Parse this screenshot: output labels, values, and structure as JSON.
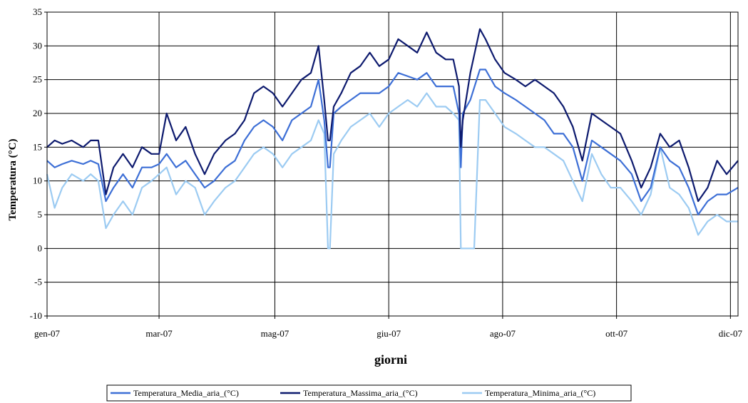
{
  "chart_data": {
    "type": "line",
    "title": "",
    "xlabel": "giorni",
    "ylabel": "Temperatura (°C)",
    "ylim": [
      -10,
      35
    ],
    "yticks": [
      -10,
      -5,
      0,
      5,
      10,
      15,
      20,
      25,
      30,
      35
    ],
    "xlim": [
      "2007-01-01",
      "2007-12-31"
    ],
    "xticks": [
      {
        "date": "2007-01-01",
        "label": "gen-07"
      },
      {
        "date": "2007-03-01",
        "label": "mar-07"
      },
      {
        "date": "2007-05-01",
        "label": "mag-07"
      },
      {
        "date": "2007-06-30",
        "label": "giu-07"
      },
      {
        "date": "2007-08-29",
        "label": "ago-07"
      },
      {
        "date": "2007-10-28",
        "label": "ott-07"
      },
      {
        "date": "2007-12-27",
        "label": "dic-07"
      }
    ],
    "grid": true,
    "legend_position": "bottom",
    "series": [
      {
        "name": "Temperatura_Media_aria_(°C)",
        "color": "#3d6fd6",
        "points": [
          [
            "2007-01-01",
            13
          ],
          [
            "2007-01-05",
            12
          ],
          [
            "2007-01-09",
            12.5
          ],
          [
            "2007-01-14",
            13
          ],
          [
            "2007-01-20",
            12.5
          ],
          [
            "2007-01-24",
            13
          ],
          [
            "2007-01-28",
            12.5
          ],
          [
            "2007-02-01",
            7
          ],
          [
            "2007-02-05",
            9
          ],
          [
            "2007-02-10",
            11
          ],
          [
            "2007-02-15",
            9
          ],
          [
            "2007-02-20",
            12
          ],
          [
            "2007-02-25",
            12
          ],
          [
            "2007-03-01",
            12.5
          ],
          [
            "2007-03-05",
            14
          ],
          [
            "2007-03-10",
            12
          ],
          [
            "2007-03-15",
            13
          ],
          [
            "2007-03-20",
            11
          ],
          [
            "2007-03-25",
            9
          ],
          [
            "2007-03-30",
            10
          ],
          [
            "2007-04-05",
            12
          ],
          [
            "2007-04-10",
            13
          ],
          [
            "2007-04-15",
            16
          ],
          [
            "2007-04-20",
            18
          ],
          [
            "2007-04-25",
            19
          ],
          [
            "2007-04-30",
            18
          ],
          [
            "2007-05-05",
            16
          ],
          [
            "2007-05-10",
            19
          ],
          [
            "2007-05-15",
            20
          ],
          [
            "2007-05-20",
            21
          ],
          [
            "2007-05-24",
            25
          ],
          [
            "2007-05-27",
            19
          ],
          [
            "2007-05-29",
            12
          ],
          [
            "2007-05-30",
            12
          ],
          [
            "2007-06-01",
            20
          ],
          [
            "2007-06-05",
            21
          ],
          [
            "2007-06-10",
            22
          ],
          [
            "2007-06-15",
            23
          ],
          [
            "2007-06-20",
            23
          ],
          [
            "2007-06-25",
            23
          ],
          [
            "2007-06-30",
            24
          ],
          [
            "2007-07-05",
            26
          ],
          [
            "2007-07-10",
            25.5
          ],
          [
            "2007-07-15",
            25
          ],
          [
            "2007-07-20",
            26
          ],
          [
            "2007-07-25",
            24
          ],
          [
            "2007-07-30",
            24
          ],
          [
            "2007-08-03",
            24
          ],
          [
            "2007-08-06",
            20
          ],
          [
            "2007-08-07",
            12
          ],
          [
            "2007-08-08",
            20
          ],
          [
            "2007-08-12",
            22
          ],
          [
            "2007-08-17",
            26.5
          ],
          [
            "2007-08-20",
            26.5
          ],
          [
            "2007-08-25",
            24
          ],
          [
            "2007-08-30",
            23
          ],
          [
            "2007-09-05",
            22
          ],
          [
            "2007-09-10",
            21
          ],
          [
            "2007-09-15",
            20
          ],
          [
            "2007-09-20",
            19
          ],
          [
            "2007-09-25",
            17
          ],
          [
            "2007-09-30",
            17
          ],
          [
            "2007-10-05",
            15
          ],
          [
            "2007-10-10",
            10
          ],
          [
            "2007-10-15",
            16
          ],
          [
            "2007-10-20",
            15
          ],
          [
            "2007-10-25",
            14
          ],
          [
            "2007-10-30",
            13
          ],
          [
            "2007-11-05",
            11
          ],
          [
            "2007-11-10",
            7
          ],
          [
            "2007-11-15",
            9
          ],
          [
            "2007-11-20",
            15
          ],
          [
            "2007-11-25",
            13
          ],
          [
            "2007-11-30",
            12
          ],
          [
            "2007-12-05",
            9
          ],
          [
            "2007-12-10",
            5
          ],
          [
            "2007-12-15",
            7
          ],
          [
            "2007-12-20",
            8
          ],
          [
            "2007-12-25",
            8
          ],
          [
            "2007-12-31",
            9
          ]
        ]
      },
      {
        "name": "Temperatura_Massima_aria_(°C)",
        "color": "#0d1a6e",
        "points": [
          [
            "2007-01-01",
            15
          ],
          [
            "2007-01-05",
            16
          ],
          [
            "2007-01-09",
            15.5
          ],
          [
            "2007-01-14",
            16
          ],
          [
            "2007-01-20",
            15
          ],
          [
            "2007-01-24",
            16
          ],
          [
            "2007-01-28",
            16
          ],
          [
            "2007-02-01",
            8
          ],
          [
            "2007-02-05",
            12
          ],
          [
            "2007-02-10",
            14
          ],
          [
            "2007-02-15",
            12
          ],
          [
            "2007-02-20",
            15
          ],
          [
            "2007-02-25",
            14
          ],
          [
            "2007-03-01",
            14
          ],
          [
            "2007-03-05",
            20
          ],
          [
            "2007-03-10",
            16
          ],
          [
            "2007-03-15",
            18
          ],
          [
            "2007-03-20",
            14
          ],
          [
            "2007-03-25",
            11
          ],
          [
            "2007-03-30",
            14
          ],
          [
            "2007-04-05",
            16
          ],
          [
            "2007-04-10",
            17
          ],
          [
            "2007-04-15",
            19
          ],
          [
            "2007-04-20",
            23
          ],
          [
            "2007-04-25",
            24
          ],
          [
            "2007-04-30",
            23
          ],
          [
            "2007-05-05",
            21
          ],
          [
            "2007-05-10",
            23
          ],
          [
            "2007-05-15",
            25
          ],
          [
            "2007-05-20",
            26
          ],
          [
            "2007-05-24",
            30
          ],
          [
            "2007-05-27",
            22
          ],
          [
            "2007-05-29",
            16
          ],
          [
            "2007-05-30",
            16
          ],
          [
            "2007-06-01",
            21
          ],
          [
            "2007-06-05",
            23
          ],
          [
            "2007-06-10",
            26
          ],
          [
            "2007-06-15",
            27
          ],
          [
            "2007-06-20",
            29
          ],
          [
            "2007-06-25",
            27
          ],
          [
            "2007-06-30",
            28
          ],
          [
            "2007-07-05",
            31
          ],
          [
            "2007-07-10",
            30
          ],
          [
            "2007-07-15",
            29
          ],
          [
            "2007-07-20",
            32
          ],
          [
            "2007-07-25",
            29
          ],
          [
            "2007-07-30",
            28
          ],
          [
            "2007-08-03",
            28
          ],
          [
            "2007-08-06",
            24
          ],
          [
            "2007-08-07",
            15
          ],
          [
            "2007-08-08",
            19
          ],
          [
            "2007-08-12",
            26
          ],
          [
            "2007-08-17",
            32.5
          ],
          [
            "2007-08-20",
            31
          ],
          [
            "2007-08-25",
            28
          ],
          [
            "2007-08-30",
            26
          ],
          [
            "2007-09-05",
            25
          ],
          [
            "2007-09-10",
            24
          ],
          [
            "2007-09-15",
            25
          ],
          [
            "2007-09-20",
            24
          ],
          [
            "2007-09-25",
            23
          ],
          [
            "2007-09-30",
            21
          ],
          [
            "2007-10-05",
            18
          ],
          [
            "2007-10-10",
            13
          ],
          [
            "2007-10-15",
            20
          ],
          [
            "2007-10-20",
            19
          ],
          [
            "2007-10-25",
            18
          ],
          [
            "2007-10-30",
            17
          ],
          [
            "2007-11-05",
            13
          ],
          [
            "2007-11-10",
            9
          ],
          [
            "2007-11-15",
            12
          ],
          [
            "2007-11-20",
            17
          ],
          [
            "2007-11-25",
            15
          ],
          [
            "2007-11-30",
            16
          ],
          [
            "2007-12-05",
            12
          ],
          [
            "2007-12-10",
            7
          ],
          [
            "2007-12-15",
            9
          ],
          [
            "2007-12-20",
            13
          ],
          [
            "2007-12-25",
            11
          ],
          [
            "2007-12-31",
            13
          ]
        ]
      },
      {
        "name": "Temperatura_Minima_aria_(°C)",
        "color": "#9ccbf2",
        "points": [
          [
            "2007-01-01",
            11
          ],
          [
            "2007-01-05",
            6
          ],
          [
            "2007-01-09",
            9
          ],
          [
            "2007-01-14",
            11
          ],
          [
            "2007-01-20",
            10
          ],
          [
            "2007-01-24",
            11
          ],
          [
            "2007-01-28",
            10
          ],
          [
            "2007-02-01",
            3
          ],
          [
            "2007-02-05",
            5
          ],
          [
            "2007-02-10",
            7
          ],
          [
            "2007-02-15",
            5
          ],
          [
            "2007-02-20",
            9
          ],
          [
            "2007-02-25",
            10
          ],
          [
            "2007-03-01",
            11
          ],
          [
            "2007-03-05",
            12
          ],
          [
            "2007-03-10",
            8
          ],
          [
            "2007-03-15",
            10
          ],
          [
            "2007-03-20",
            9
          ],
          [
            "2007-03-25",
            5
          ],
          [
            "2007-03-30",
            7
          ],
          [
            "2007-04-05",
            9
          ],
          [
            "2007-04-10",
            10
          ],
          [
            "2007-04-15",
            12
          ],
          [
            "2007-04-20",
            14
          ],
          [
            "2007-04-25",
            15
          ],
          [
            "2007-04-30",
            14
          ],
          [
            "2007-05-05",
            12
          ],
          [
            "2007-05-10",
            14
          ],
          [
            "2007-05-15",
            15
          ],
          [
            "2007-05-20",
            16
          ],
          [
            "2007-05-24",
            19
          ],
          [
            "2007-05-27",
            17
          ],
          [
            "2007-05-29",
            0
          ],
          [
            "2007-05-30",
            0
          ],
          [
            "2007-06-01",
            14
          ],
          [
            "2007-06-05",
            16
          ],
          [
            "2007-06-10",
            18
          ],
          [
            "2007-06-15",
            19
          ],
          [
            "2007-06-20",
            20
          ],
          [
            "2007-06-25",
            18
          ],
          [
            "2007-06-30",
            20
          ],
          [
            "2007-07-05",
            21
          ],
          [
            "2007-07-10",
            22
          ],
          [
            "2007-07-15",
            21
          ],
          [
            "2007-07-20",
            23
          ],
          [
            "2007-07-25",
            21
          ],
          [
            "2007-07-30",
            21
          ],
          [
            "2007-08-03",
            20
          ],
          [
            "2007-08-06",
            19
          ],
          [
            "2007-08-07",
            0
          ],
          [
            "2007-08-14",
            0
          ],
          [
            "2007-08-17",
            22
          ],
          [
            "2007-08-20",
            22
          ],
          [
            "2007-08-25",
            20
          ],
          [
            "2007-08-30",
            18
          ],
          [
            "2007-09-05",
            17
          ],
          [
            "2007-09-10",
            16
          ],
          [
            "2007-09-15",
            15
          ],
          [
            "2007-09-20",
            15
          ],
          [
            "2007-09-25",
            14
          ],
          [
            "2007-09-30",
            13
          ],
          [
            "2007-10-05",
            10
          ],
          [
            "2007-10-10",
            7
          ],
          [
            "2007-10-15",
            14
          ],
          [
            "2007-10-20",
            11
          ],
          [
            "2007-10-25",
            9
          ],
          [
            "2007-10-30",
            9
          ],
          [
            "2007-11-05",
            7
          ],
          [
            "2007-11-10",
            5
          ],
          [
            "2007-11-15",
            8
          ],
          [
            "2007-11-20",
            15
          ],
          [
            "2007-11-25",
            9
          ],
          [
            "2007-11-30",
            8
          ],
          [
            "2007-12-05",
            6
          ],
          [
            "2007-12-10",
            2
          ],
          [
            "2007-12-15",
            4
          ],
          [
            "2007-12-20",
            5
          ],
          [
            "2007-12-25",
            4
          ],
          [
            "2007-12-31",
            4
          ]
        ]
      }
    ]
  }
}
